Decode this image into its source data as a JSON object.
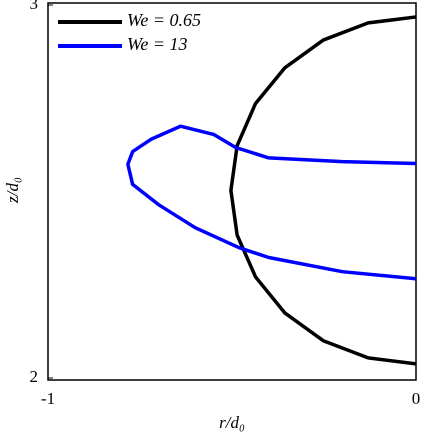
{
  "chart_data": {
    "type": "line",
    "xlabel": "r/d₀",
    "ylabel": "z/d₀",
    "xlim": [
      -1,
      0
    ],
    "ylim": [
      2,
      3
    ],
    "xticks": [
      -1,
      0
    ],
    "yticks": [
      2,
      3
    ],
    "grid": false,
    "legend": "upper left",
    "series": [
      {
        "name": "We = 0.65",
        "color": "#000000",
        "x": [
          0,
          -0.13,
          -0.252,
          -0.356,
          -0.436,
          -0.486,
          -0.503,
          -0.486,
          -0.436,
          -0.356,
          -0.252,
          -0.13,
          0
        ],
        "values": [
          2.968,
          2.952,
          2.906,
          2.832,
          2.736,
          2.623,
          2.503,
          2.383,
          2.271,
          2.174,
          2.1,
          2.054,
          2.038
        ]
      },
      {
        "name": "We = 13",
        "color": "#0000ff",
        "x": [
          0,
          -0.2,
          -0.4,
          -0.49,
          -0.55,
          -0.64,
          -0.72,
          -0.77,
          -0.783,
          -0.77,
          -0.7,
          -0.6,
          -0.48,
          -0.4,
          -0.2,
          0
        ],
        "values": [
          2.575,
          2.58,
          2.59,
          2.618,
          2.653,
          2.675,
          2.64,
          2.607,
          2.573,
          2.519,
          2.465,
          2.403,
          2.349,
          2.323,
          2.285,
          2.266
        ]
      }
    ]
  }
}
